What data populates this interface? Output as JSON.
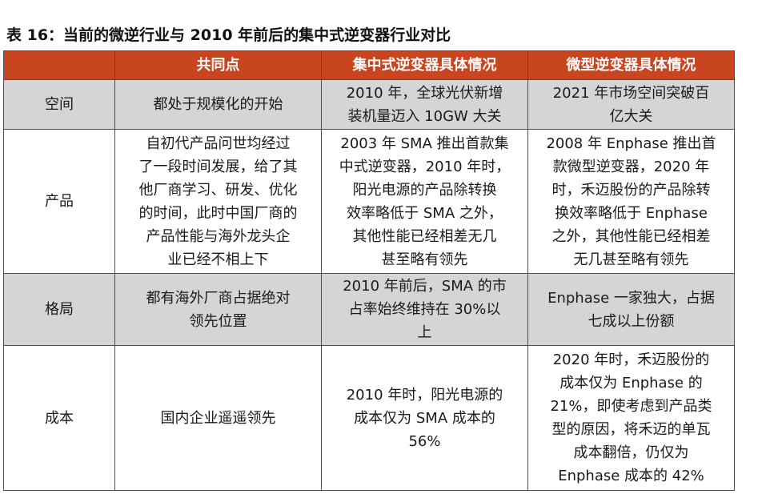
{
  "title": "表 16：当前的微逆行业与 2010 年前后的集中式逆变器行业对比",
  "table": {
    "headers": [
      "",
      "共同点",
      "集中式逆变器具体情况",
      "微型逆变器具体情况"
    ],
    "rows": [
      {
        "label": "空间",
        "common": "都处于规模化的开始",
        "central": "2010 年，全球光伏新增\n装机量迈入 10GW 大关",
        "micro": "2021 年市场空间突破百\n亿大关"
      },
      {
        "label": "产品",
        "common": "自初代产品问世均经过\n了一段时间发展，给了其\n他厂商学习、研发、优化\n的时间，此时中国厂商的\n产品性能与海外龙头企\n业已经不相上下",
        "central": "2003 年 SMA 推出首款集\n中式逆变器，2010 年时，\n阳光电源的产品除转换\n效率略低于 SMA 之外，\n其他性能已经相差无几\n甚至略有领先",
        "micro": "2008 年 Enphase 推出首\n款微型逆变器，2020 年\n时，禾迈股份的产品除转\n换效率略低于 Enphase\n之外，其他性能已经相差\n无几甚至略有领先"
      },
      {
        "label": "格局",
        "common": "都有海外厂商占据绝对\n领先位置",
        "central": "2010 年前后，SMA 的市\n占率始终维持在 30%以\n上",
        "micro": "Enphase 一家独大，占据\n七成以上份额"
      },
      {
        "label": "成本",
        "common": "国内企业遥遥领先",
        "central": "2010 年时，阳光电源的\n成本仅为 SMA 成本的\n56%",
        "micro": "2020 年时，禾迈股份的\n成本仅为 Enphase 的\n21%，即使考虑到产品类\n型的原因，将禾迈的单瓦\n成本翻倍，仍仅为\nEnphase 成本的 42%"
      }
    ]
  }
}
